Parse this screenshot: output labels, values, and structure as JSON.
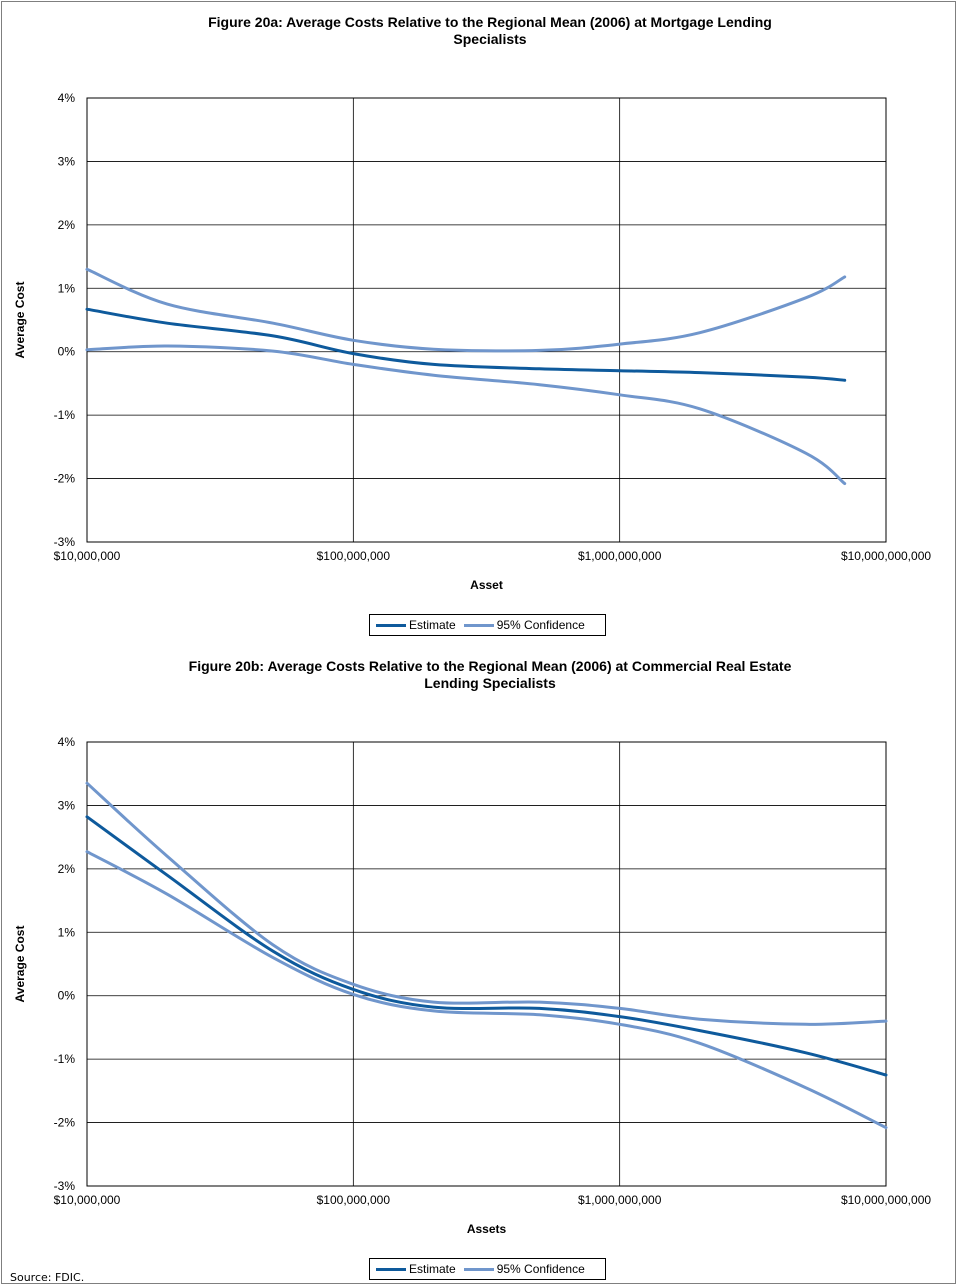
{
  "colors": {
    "estimate": "#0e5a9c",
    "confidence": "#7096cc",
    "grid": "#000000"
  },
  "source": "Source: FDIC.",
  "chart_data": [
    {
      "type": "line",
      "title": "Figure 20a: Average Costs Relative to the Regional Mean (2006) at Mortgage Lending\nSpecialists",
      "xlabel": "Asset",
      "ylabel": "Average Cost",
      "x_scale": "log",
      "xlim": [
        10000000,
        10000000000
      ],
      "ylim": [
        -3,
        4
      ],
      "x_ticks": [
        10000000,
        100000000,
        1000000000,
        10000000000
      ],
      "x_tick_labels": [
        "$10,000,000",
        "$100,000,000",
        "$1,000,000,000",
        "$10,000,000,000"
      ],
      "y_ticks": [
        -3,
        -2,
        -1,
        0,
        1,
        2,
        3,
        4
      ],
      "y_tick_labels": [
        "-3%",
        "-2%",
        "-1%",
        "0%",
        "1%",
        "2%",
        "3%",
        "4%"
      ],
      "grid": true,
      "legend": [
        "Estimate",
        "95% Confidence"
      ],
      "legend_position": "bottom",
      "series": [
        {
          "name": "Estimate",
          "role": "estimate",
          "x": [
            10000000,
            20000000,
            50000000,
            100000000,
            200000000,
            500000000,
            1000000000,
            2000000000,
            5000000000,
            7000000000
          ],
          "values": [
            0.67,
            0.45,
            0.25,
            -0.03,
            -0.2,
            -0.27,
            -0.3,
            -0.33,
            -0.4,
            -0.45
          ]
        },
        {
          "name": "95% Confidence",
          "role": "upper",
          "x": [
            10000000,
            20000000,
            50000000,
            100000000,
            200000000,
            500000000,
            1000000000,
            2000000000,
            5000000000,
            7000000000
          ],
          "values": [
            1.3,
            0.75,
            0.45,
            0.18,
            0.04,
            0.02,
            0.12,
            0.3,
            0.85,
            1.18
          ]
        },
        {
          "name": "95% Confidence",
          "role": "lower",
          "x": [
            10000000,
            20000000,
            50000000,
            100000000,
            200000000,
            500000000,
            1000000000,
            2000000000,
            5000000000,
            7000000000
          ],
          "values": [
            0.03,
            0.09,
            0.01,
            -0.2,
            -0.37,
            -0.52,
            -0.68,
            -0.9,
            -1.6,
            -2.08
          ]
        }
      ]
    },
    {
      "type": "line",
      "title": "Figure 20b: Average Costs Relative to the Regional Mean (2006) at Commercial Real Estate\nLending Specialists",
      "xlabel": "Assets",
      "ylabel": "Average Cost",
      "x_scale": "log",
      "xlim": [
        10000000,
        10000000000
      ],
      "ylim": [
        -3,
        4
      ],
      "x_ticks": [
        10000000,
        100000000,
        1000000000,
        10000000000
      ],
      "x_tick_labels": [
        "$10,000,000",
        "$100,000,000",
        "$1,000,000,000",
        "$10,000,000,000"
      ],
      "y_ticks": [
        -3,
        -2,
        -1,
        0,
        1,
        2,
        3,
        4
      ],
      "y_tick_labels": [
        "-3%",
        "-2%",
        "-1%",
        "0%",
        "1%",
        "2%",
        "3%",
        "4%"
      ],
      "grid": true,
      "legend": [
        "Estimate",
        "95% Confidence"
      ],
      "legend_position": "bottom",
      "series": [
        {
          "name": "Estimate",
          "role": "estimate",
          "x": [
            10000000,
            20000000,
            50000000,
            100000000,
            200000000,
            500000000,
            1000000000,
            2000000000,
            5000000000,
            10000000000
          ],
          "values": [
            2.82,
            1.9,
            0.7,
            0.1,
            -0.18,
            -0.2,
            -0.33,
            -0.55,
            -0.9,
            -1.25
          ]
        },
        {
          "name": "95% Confidence",
          "role": "upper",
          "x": [
            10000000,
            20000000,
            50000000,
            100000000,
            200000000,
            500000000,
            1000000000,
            2000000000,
            5000000000,
            10000000000
          ],
          "values": [
            3.35,
            2.2,
            0.8,
            0.18,
            -0.1,
            -0.1,
            -0.2,
            -0.37,
            -0.45,
            -0.4
          ]
        },
        {
          "name": "95% Confidence",
          "role": "lower",
          "x": [
            10000000,
            20000000,
            50000000,
            100000000,
            200000000,
            500000000,
            1000000000,
            2000000000,
            5000000000,
            10000000000
          ],
          "values": [
            2.27,
            1.6,
            0.6,
            0.02,
            -0.24,
            -0.3,
            -0.45,
            -0.75,
            -1.45,
            -2.08
          ]
        }
      ]
    }
  ]
}
